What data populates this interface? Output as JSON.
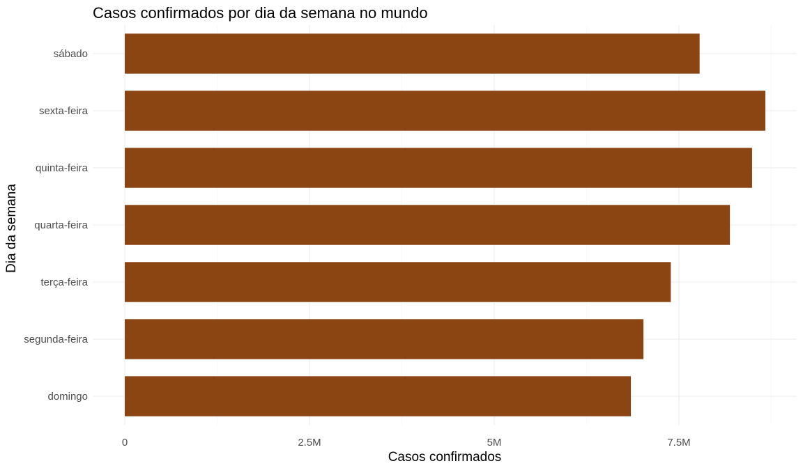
{
  "chart_data": {
    "type": "bar",
    "orientation": "horizontal",
    "title": "Casos confirmados por dia da semana no mundo",
    "xlabel": "Casos confirmados",
    "ylabel": "Dia da semana",
    "categories": [
      "domingo",
      "segunda-feira",
      "terça-feira",
      "quarta-feira",
      "quinta-feira",
      "sexta-feira",
      "sábado"
    ],
    "values": [
      6850000,
      7020000,
      7390000,
      8190000,
      8490000,
      8670000,
      7780000
    ],
    "xlim": [
      0,
      9000000
    ],
    "x_ticks": [
      {
        "value": 0,
        "label": "0"
      },
      {
        "value": 2500000,
        "label": "2.5M"
      },
      {
        "value": 5000000,
        "label": "5M"
      },
      {
        "value": 7500000,
        "label": "7.5M"
      }
    ],
    "bar_color": "#8B4513",
    "grid": true,
    "legend": "none"
  }
}
